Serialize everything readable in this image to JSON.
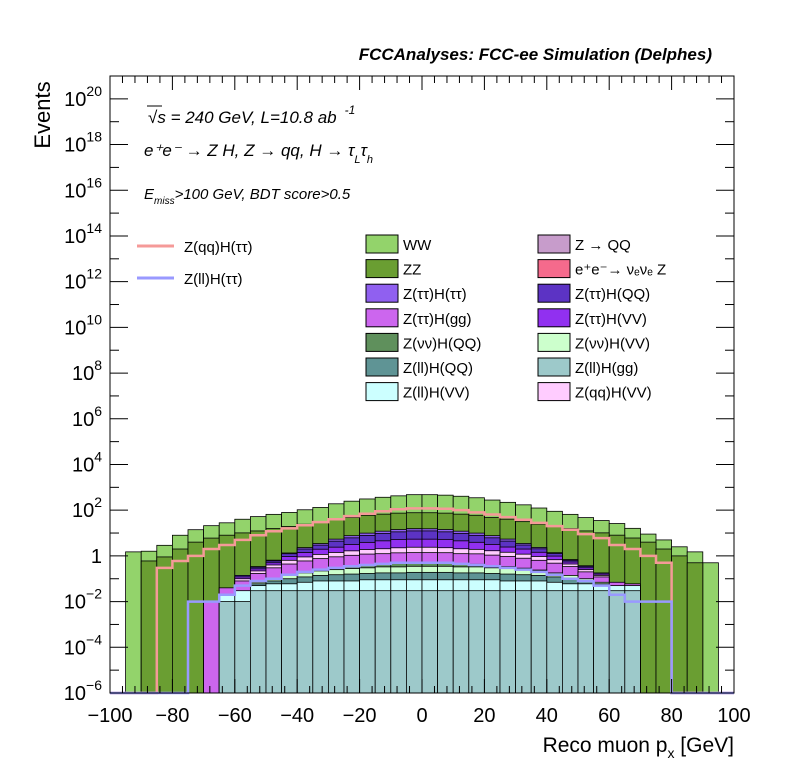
{
  "header": {
    "title": "FCCAnalyses: FCC-ee Simulation (Delphes)",
    "line1_sqrt": "√s",
    "line1_rest": " = 240 GeV, L=10.8 ab",
    "line1_sup": "-1",
    "line2": "e⁺e⁻ → Z H, Z → qq, H → τ",
    "line2_sub1": "L",
    "line2_tau": "τ",
    "line2_sub2": "h",
    "line3_E": "E",
    "line3_sub": "miss",
    "line3_rest": ">100 GeV, BDT score>0.5"
  },
  "colors": {
    "WW": "#93d36b",
    "ZZ": "#6a9e32",
    "Z_QQ": "#c79ccb",
    "eeNuNuZ": "#f56a8c",
    "ZtautauHtautau": "#9060f0",
    "ZtautauHQQ": "#5c33c4",
    "ZtautauHgg": "#cc66ee",
    "ZtautauHVV": "#9130f0",
    "ZnunuHQQ": "#5f905c",
    "ZnunuHVV": "#ccffcc",
    "ZllHQQ": "#5f9495",
    "ZllHgg": "#9dc9ca",
    "ZllHVV": "#ccffff",
    "ZqqHVV": "#ffccff",
    "signal_qq": "#f59a98",
    "signal_ll": "#9999ff"
  },
  "chart_data": {
    "type": "bar",
    "stacked": true,
    "log_y": true,
    "xlabel": "Reco muon p",
    "xlabel_sub": "x",
    "xlabel_unit": " [GeV]",
    "ylabel": "Events",
    "xlim": [
      -100,
      100
    ],
    "ylim": [
      1e-06,
      1e+21
    ],
    "x_ticks": [
      "−100",
      "−80",
      "−60",
      "−40",
      "−20",
      "0",
      "20",
      "40",
      "60",
      "80",
      "100"
    ],
    "y_ticks": [
      {
        "base": "10",
        "exp": "−6"
      },
      {
        "base": "10",
        "exp": "−4"
      },
      {
        "base": "10",
        "exp": "−2"
      },
      {
        "base": "1",
        "exp": ""
      },
      {
        "base": "10",
        "exp": "2"
      },
      {
        "base": "10",
        "exp": "4"
      },
      {
        "base": "10",
        "exp": "6"
      },
      {
        "base": "10",
        "exp": "8"
      },
      {
        "base": "10",
        "exp": "10"
      },
      {
        "base": "10",
        "exp": "12"
      },
      {
        "base": "10",
        "exp": "14"
      },
      {
        "base": "10",
        "exp": "16"
      },
      {
        "base": "10",
        "exp": "18"
      },
      {
        "base": "10",
        "exp": "20"
      }
    ],
    "bin_edges": [
      -100,
      -95,
      -90,
      -85,
      -80,
      -75,
      -70,
      -65,
      -60,
      -55,
      -50,
      -45,
      -40,
      -35,
      -30,
      -25,
      -20,
      -15,
      -10,
      -5,
      0,
      5,
      10,
      15,
      20,
      25,
      30,
      35,
      40,
      45,
      50,
      55,
      60,
      65,
      70,
      75,
      80,
      85,
      90,
      95,
      100
    ],
    "stack_order_bottom_to_top": [
      "ZllHgg",
      "ZllHVV",
      "ZllHQQ",
      "ZnunuHVV",
      "ZnunuHQQ",
      "ZtautauHgg",
      "ZqqHVV",
      "ZtautauHVV",
      "ZtautauHQQ",
      "ZtautauHtautau",
      "Z_QQ",
      "eeNuNuZ",
      "ZZ",
      "WW"
    ],
    "series": [
      {
        "key": "ZllHgg",
        "name": "Z(ll)H(gg)",
        "values": [
          0,
          0,
          0,
          0,
          0,
          0,
          5e-07,
          0.01,
          0.01,
          0.03,
          0.03,
          0.03,
          0.03,
          0.03,
          0.03,
          0.03,
          0.03,
          0.03,
          0.03,
          0.03,
          0.03,
          0.03,
          0.03,
          0.03,
          0.03,
          0.03,
          0.03,
          0.03,
          0.03,
          0.03,
          0.03,
          0.03,
          0.03,
          0.03,
          0,
          0,
          0,
          0,
          0,
          0
        ]
      },
      {
        "key": "ZllHVV",
        "name": "Z(ll)H(VV)",
        "values": [
          0,
          0,
          0,
          0,
          0,
          0,
          0,
          0.01,
          0.02,
          0.02,
          0.03,
          0.03,
          0.04,
          0.05,
          0.05,
          0.05,
          0.06,
          0.06,
          0.06,
          0.06,
          0.06,
          0.06,
          0.06,
          0.06,
          0.06,
          0.05,
          0.05,
          0.05,
          0.04,
          0.03,
          0.03,
          0.02,
          0.02,
          0.02,
          0,
          0,
          0,
          0,
          0,
          0
        ]
      },
      {
        "key": "ZllHQQ",
        "name": "Z(ll)H(QQ)",
        "values": [
          0,
          0,
          0,
          0,
          0,
          0,
          0,
          0,
          0,
          0.01,
          0.02,
          0.04,
          0.05,
          0.06,
          0.07,
          0.08,
          0.08,
          0.09,
          0.09,
          0.1,
          0.1,
          0.1,
          0.09,
          0.09,
          0.08,
          0.08,
          0.07,
          0.06,
          0.05,
          0.04,
          0.02,
          0.01,
          0,
          0,
          0,
          0,
          0,
          0,
          0,
          0
        ]
      },
      {
        "key": "ZnunuHVV",
        "name": "Z(νν)H(VV)",
        "values": [
          0,
          0,
          0,
          0,
          0,
          0,
          0,
          0,
          0,
          0.01,
          0.02,
          0.04,
          0.06,
          0.08,
          0.1,
          0.12,
          0.13,
          0.15,
          0.15,
          0.16,
          0.16,
          0.16,
          0.15,
          0.15,
          0.13,
          0.12,
          0.1,
          0.08,
          0.06,
          0.04,
          0.02,
          0.01,
          0,
          0,
          0,
          0,
          0,
          0,
          0,
          0
        ]
      },
      {
        "key": "ZnunuHQQ",
        "name": "Z(νν)H(QQ)",
        "values": [
          0,
          0,
          0,
          0,
          0,
          0,
          0,
          0,
          0,
          0,
          0,
          0,
          0.02,
          0.04,
          0.06,
          0.08,
          0.1,
          0.12,
          0.13,
          0.14,
          0.14,
          0.13,
          0.12,
          0.1,
          0.08,
          0.06,
          0.04,
          0.02,
          0,
          0,
          0,
          0,
          0,
          0,
          0,
          0,
          0,
          0,
          0,
          0
        ]
      },
      {
        "key": "ZtautauHgg",
        "name": "Z(ττ)H(gg)",
        "values": [
          0,
          0,
          0,
          0,
          0,
          0,
          0.01,
          0.02,
          0.05,
          0.1,
          0.2,
          0.3,
          0.4,
          0.5,
          0.6,
          0.7,
          0.8,
          0.8,
          0.9,
          0.9,
          0.9,
          0.9,
          0.8,
          0.8,
          0.7,
          0.6,
          0.5,
          0.4,
          0.3,
          0.2,
          0.1,
          0.05,
          0.02,
          0.01,
          0,
          0,
          0,
          0,
          0,
          0
        ]
      },
      {
        "key": "ZqqHVV",
        "name": "Z(qq)H(VV)",
        "values": [
          0,
          0,
          0,
          0,
          0,
          0,
          0,
          0,
          0.02,
          0.05,
          0.1,
          0.2,
          0.3,
          0.4,
          0.5,
          0.6,
          0.7,
          0.8,
          0.9,
          1,
          1,
          0.9,
          0.8,
          0.7,
          0.6,
          0.5,
          0.4,
          0.3,
          0.2,
          0.1,
          0.05,
          0.02,
          0,
          0,
          0,
          0,
          0,
          0,
          0,
          0
        ]
      },
      {
        "key": "ZtautauHVV",
        "name": "Z(ττ)H(VV)",
        "values": [
          0,
          0,
          0,
          0,
          0,
          0,
          0,
          0,
          0.02,
          0.05,
          0.1,
          0.3,
          0.5,
          0.8,
          1,
          1.5,
          2,
          2.5,
          3,
          3,
          3,
          3,
          2.5,
          2,
          1.5,
          1,
          0.8,
          0.5,
          0.3,
          0.1,
          0.05,
          0.02,
          0,
          0,
          0,
          0,
          0,
          0,
          0,
          0
        ]
      },
      {
        "key": "ZtautauHQQ",
        "name": "Z(ττ)H(QQ)",
        "values": [
          0,
          0,
          0,
          0,
          0,
          0,
          0,
          0,
          0.02,
          0.05,
          0.1,
          0.3,
          0.6,
          1,
          2,
          3,
          4,
          5,
          6,
          7,
          7,
          6,
          5,
          4,
          3,
          2,
          1,
          0.6,
          0.3,
          0.1,
          0.05,
          0.02,
          0,
          0,
          0,
          0,
          0,
          0,
          0,
          0
        ]
      },
      {
        "key": "ZtautauHtautau",
        "name": "Z(ττ)H(ττ)",
        "values": [
          0,
          0,
          0,
          0,
          0,
          0,
          0,
          0,
          0,
          0.02,
          0.05,
          0.1,
          0.3,
          0.5,
          1,
          1.5,
          2,
          2.5,
          3,
          3,
          3,
          3,
          2.5,
          2,
          1.5,
          1,
          0.5,
          0.3,
          0.1,
          0.05,
          0.02,
          0,
          0,
          0,
          0,
          0,
          0,
          0,
          0,
          0
        ]
      },
      {
        "key": "Z_QQ",
        "name": "Z → QQ",
        "values": [
          0,
          0,
          0,
          0,
          0,
          0,
          0,
          0,
          0,
          0,
          0,
          0,
          0,
          0,
          0,
          0,
          0,
          0,
          0,
          0,
          0,
          0,
          0,
          0,
          0,
          0,
          0,
          0,
          0,
          0,
          0,
          0,
          0,
          0,
          0,
          0,
          0,
          0,
          0,
          0
        ]
      },
      {
        "key": "eeNuNuZ",
        "name": "e⁺e⁻→ νₑνₑ Z",
        "values": [
          0,
          0,
          0,
          0,
          0,
          0,
          0,
          0,
          0,
          0,
          0,
          0,
          0,
          0,
          0,
          0,
          0,
          0,
          0,
          0.05,
          0,
          0,
          0,
          0,
          0,
          0,
          0,
          0,
          0,
          0,
          0,
          0,
          0,
          0,
          0,
          0,
          0,
          0,
          0,
          0
        ]
      },
      {
        "key": "ZZ",
        "name": "ZZ",
        "values": [
          0,
          0,
          0.6,
          0.9,
          2,
          4,
          6,
          8,
          10,
          12,
          15,
          18,
          22,
          28,
          35,
          40,
          50,
          55,
          60,
          62,
          62,
          60,
          55,
          50,
          40,
          35,
          28,
          22,
          18,
          15,
          12,
          10,
          8,
          6,
          4,
          2,
          1,
          0.5,
          0,
          0
        ]
      },
      {
        "key": "WW",
        "name": "WW",
        "values": [
          0,
          1.5,
          1,
          2,
          6,
          10,
          15,
          20,
          30,
          40,
          50,
          60,
          80,
          100,
          150,
          200,
          250,
          300,
          350,
          400,
          400,
          380,
          340,
          290,
          230,
          180,
          140,
          100,
          70,
          50,
          35,
          25,
          18,
          10,
          5,
          3,
          1.5,
          1,
          0.5,
          0
        ]
      }
    ],
    "signals": [
      {
        "key": "signal_qq",
        "name": "Z(qq)H(ττ)",
        "values": [
          0,
          0,
          0,
          0.3,
          0.6,
          1,
          2,
          3,
          5,
          8,
          12,
          16,
          22,
          30,
          40,
          55,
          70,
          90,
          110,
          120,
          120,
          115,
          100,
          80,
          65,
          50,
          38,
          28,
          20,
          14,
          9,
          6,
          3,
          2,
          1,
          0.5,
          0,
          0,
          0,
          0
        ]
      },
      {
        "key": "signal_ll",
        "name": "Z(ll)H(ττ)",
        "values": [
          0,
          0,
          0,
          0,
          0,
          0.01,
          0.01,
          0.02,
          0.05,
          0.08,
          0.1,
          0.15,
          0.2,
          0.25,
          0.3,
          0.35,
          0.4,
          0.45,
          0.5,
          0.5,
          0.5,
          0.5,
          0.45,
          0.4,
          0.35,
          0.3,
          0.25,
          0.2,
          0.15,
          0.1,
          0.08,
          0.05,
          0.02,
          0.01,
          0.01,
          0.01,
          0,
          0,
          0,
          0
        ]
      }
    ],
    "legend_signal": [
      {
        "key": "signal_qq",
        "label": "Z(qq)H(ττ)"
      },
      {
        "key": "signal_ll",
        "label": "Z(ll)H(ττ)"
      }
    ],
    "legend_bkg": [
      {
        "key": "WW",
        "label": "WW"
      },
      {
        "key": "Z_QQ",
        "label": "Z → QQ"
      },
      {
        "key": "ZZ",
        "label": "ZZ"
      },
      {
        "key": "eeNuNuZ",
        "label": "e⁺e⁻→ νₑνₑ Z"
      },
      {
        "key": "ZtautauHtautau",
        "label": "Z(ττ)H(ττ)"
      },
      {
        "key": "ZtautauHQQ",
        "label": "Z(ττ)H(QQ)"
      },
      {
        "key": "ZtautauHgg",
        "label": "Z(ττ)H(gg)"
      },
      {
        "key": "ZtautauHVV",
        "label": "Z(ττ)H(VV)"
      },
      {
        "key": "ZnunuHQQ",
        "label": "Z(νν)H(QQ)"
      },
      {
        "key": "ZnunuHVV",
        "label": "Z(νν)H(VV)"
      },
      {
        "key": "ZllHQQ",
        "label": "Z(ll)H(QQ)"
      },
      {
        "key": "ZllHgg",
        "label": "Z(ll)H(gg)"
      },
      {
        "key": "ZllHVV",
        "label": "Z(ll)H(VV)"
      },
      {
        "key": "ZqqHVV",
        "label": "Z(qq)H(VV)"
      }
    ]
  }
}
